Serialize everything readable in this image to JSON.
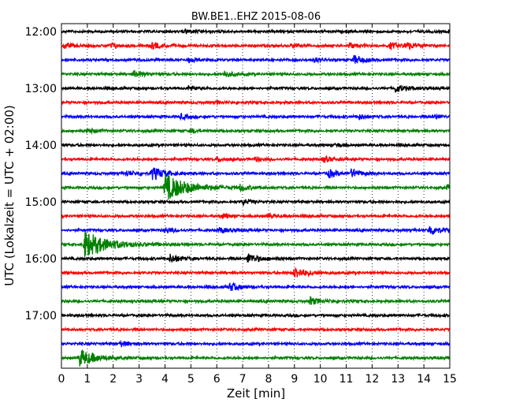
{
  "chart_data": {
    "type": "line",
    "subtype": "dayplot-seismogram",
    "title": "BW.BE1..EHZ 2015-08-06",
    "xlabel": "Zeit  [min]",
    "ylabel": "UTC (Lokalzeit = UTC + 02:00)",
    "xlim": [
      0,
      15
    ],
    "x_ticks": [
      "0",
      "1",
      "2",
      "3",
      "4",
      "5",
      "6",
      "7",
      "8",
      "9",
      "10",
      "11",
      "12",
      "13",
      "14",
      "15"
    ],
    "y_ticks": [
      "12:00",
      "13:00",
      "14:00",
      "15:00",
      "16:00",
      "17:00"
    ],
    "trace_interval_min": 15,
    "grid": "vertical dotted at each minute",
    "colors": [
      "#000000",
      "#ff0000",
      "#0000ff",
      "#008000"
    ],
    "traces": [
      {
        "start": "12:00",
        "color": "#000000",
        "events": [
          {
            "t": 4.8,
            "amp": 0.3
          }
        ]
      },
      {
        "start": "12:15",
        "color": "#ff0000",
        "events": [
          {
            "t": 0.1,
            "amp": 0.4
          },
          {
            "t": 1.9,
            "amp": 0.35
          },
          {
            "t": 3.5,
            "amp": 0.45
          },
          {
            "t": 8.9,
            "amp": 0.3
          },
          {
            "t": 11.1,
            "amp": 0.4
          },
          {
            "t": 12.7,
            "amp": 0.45
          },
          {
            "t": 13.3,
            "amp": 0.5
          }
        ]
      },
      {
        "start": "12:30",
        "color": "#0000ff",
        "events": [
          {
            "t": 4.9,
            "amp": 0.3
          },
          {
            "t": 9.8,
            "amp": 0.3
          },
          {
            "t": 11.3,
            "amp": 0.6
          }
        ]
      },
      {
        "start": "12:45",
        "color": "#008000",
        "events": [
          {
            "t": 2.8,
            "amp": 0.5
          },
          {
            "t": 6.3,
            "amp": 0.45
          }
        ]
      },
      {
        "start": "13:00",
        "color": "#000000",
        "events": [
          {
            "t": 4.9,
            "amp": 0.35
          },
          {
            "t": 12.9,
            "amp": 0.55
          }
        ]
      },
      {
        "start": "13:15",
        "color": "#ff0000",
        "events": [
          {
            "t": 6.0,
            "amp": 0.2
          }
        ]
      },
      {
        "start": "13:30",
        "color": "#0000ff",
        "events": [
          {
            "t": 4.6,
            "amp": 0.35
          },
          {
            "t": 11.5,
            "amp": 0.3
          },
          {
            "t": 14.4,
            "amp": 0.3
          }
        ]
      },
      {
        "start": "13:45",
        "color": "#008000",
        "events": [
          {
            "t": 1.0,
            "amp": 0.35
          },
          {
            "t": 5.0,
            "amp": 0.3
          }
        ]
      },
      {
        "start": "14:00",
        "color": "#000000",
        "events": [
          {
            "t": 10.6,
            "amp": 0.25
          }
        ]
      },
      {
        "start": "14:15",
        "color": "#ff0000",
        "events": [
          {
            "t": 6.0,
            "amp": 0.3
          },
          {
            "t": 7.5,
            "amp": 0.3
          },
          {
            "t": 10.1,
            "amp": 0.4
          }
        ]
      },
      {
        "start": "14:30",
        "color": "#0000ff",
        "events": [
          {
            "t": 2.5,
            "amp": 0.4
          },
          {
            "t": 3.5,
            "amp": 0.9
          },
          {
            "t": 10.3,
            "amp": 0.55
          },
          {
            "t": 11.2,
            "amp": 0.55
          }
        ]
      },
      {
        "start": "14:45",
        "color": "#008000",
        "events": [
          {
            "t": 4.0,
            "amp": 1.9
          },
          {
            "t": 6.9,
            "amp": 0.4
          },
          {
            "t": 14.9,
            "amp": 0.35
          }
        ]
      },
      {
        "start": "15:00",
        "color": "#000000",
        "events": [
          {
            "t": 7.0,
            "amp": 0.35
          }
        ]
      },
      {
        "start": "15:15",
        "color": "#ff0000",
        "events": [
          {
            "t": 6.2,
            "amp": 0.3
          },
          {
            "t": 8.0,
            "amp": 0.3
          }
        ]
      },
      {
        "start": "15:30",
        "color": "#0000ff",
        "events": [
          {
            "t": 4.0,
            "amp": 0.4
          },
          {
            "t": 6.1,
            "amp": 0.4
          },
          {
            "t": 14.2,
            "amp": 0.7
          }
        ]
      },
      {
        "start": "15:45",
        "color": "#008000",
        "events": [
          {
            "t": 0.9,
            "amp": 1.9
          }
        ]
      },
      {
        "start": "16:00",
        "color": "#000000",
        "events": [
          {
            "t": 4.2,
            "amp": 0.6
          },
          {
            "t": 7.2,
            "amp": 0.7
          }
        ]
      },
      {
        "start": "16:15",
        "color": "#ff0000",
        "events": [
          {
            "t": 9.0,
            "amp": 0.8
          }
        ]
      },
      {
        "start": "16:30",
        "color": "#0000ff",
        "events": [
          {
            "t": 6.5,
            "amp": 0.55
          }
        ]
      },
      {
        "start": "16:45",
        "color": "#008000",
        "events": [
          {
            "t": 9.6,
            "amp": 0.55
          }
        ]
      },
      {
        "start": "17:00",
        "color": "#000000",
        "events": []
      },
      {
        "start": "17:15",
        "color": "#ff0000",
        "events": []
      },
      {
        "start": "17:30",
        "color": "#0000ff",
        "events": [
          {
            "t": 2.3,
            "amp": 0.35
          }
        ]
      },
      {
        "start": "17:45",
        "color": "#008000",
        "events": [
          {
            "t": 0.7,
            "amp": 1.2
          }
        ]
      }
    ]
  }
}
